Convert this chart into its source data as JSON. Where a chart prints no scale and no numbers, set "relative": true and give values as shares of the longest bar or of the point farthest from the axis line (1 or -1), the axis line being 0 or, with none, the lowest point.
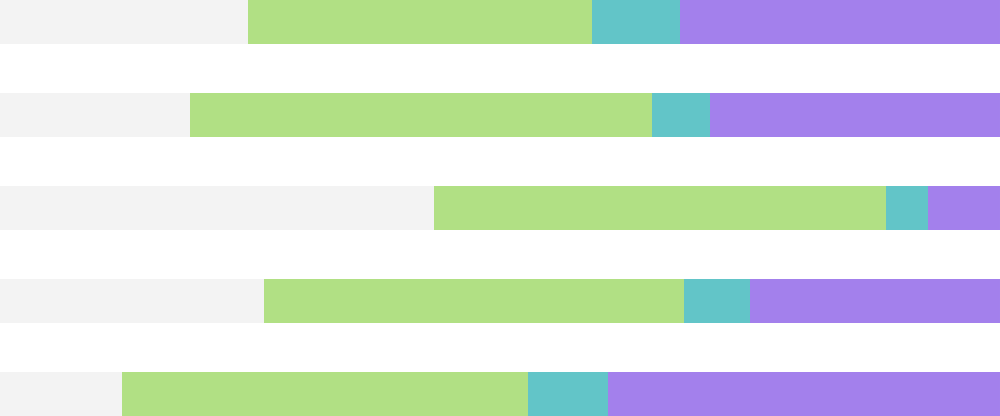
{
  "chart_data": {
    "type": "bar",
    "orientation": "horizontal",
    "stacked": true,
    "relative": true,
    "categories": [
      null,
      null,
      null,
      null,
      null
    ],
    "series": [
      {
        "color": "#f3f3f3",
        "values": [
          0.248,
          0.19,
          0.434,
          0.264,
          0.122
        ]
      },
      {
        "color": "#b1e084",
        "values": [
          0.344,
          0.462,
          0.452,
          0.42,
          0.406
        ]
      },
      {
        "color": "#62c5c8",
        "values": [
          0.088,
          0.058,
          0.042,
          0.066,
          0.08
        ]
      },
      {
        "color": "#a380ec",
        "values": [
          0.32,
          0.29,
          0.072,
          0.25,
          0.392
        ]
      }
    ]
  }
}
